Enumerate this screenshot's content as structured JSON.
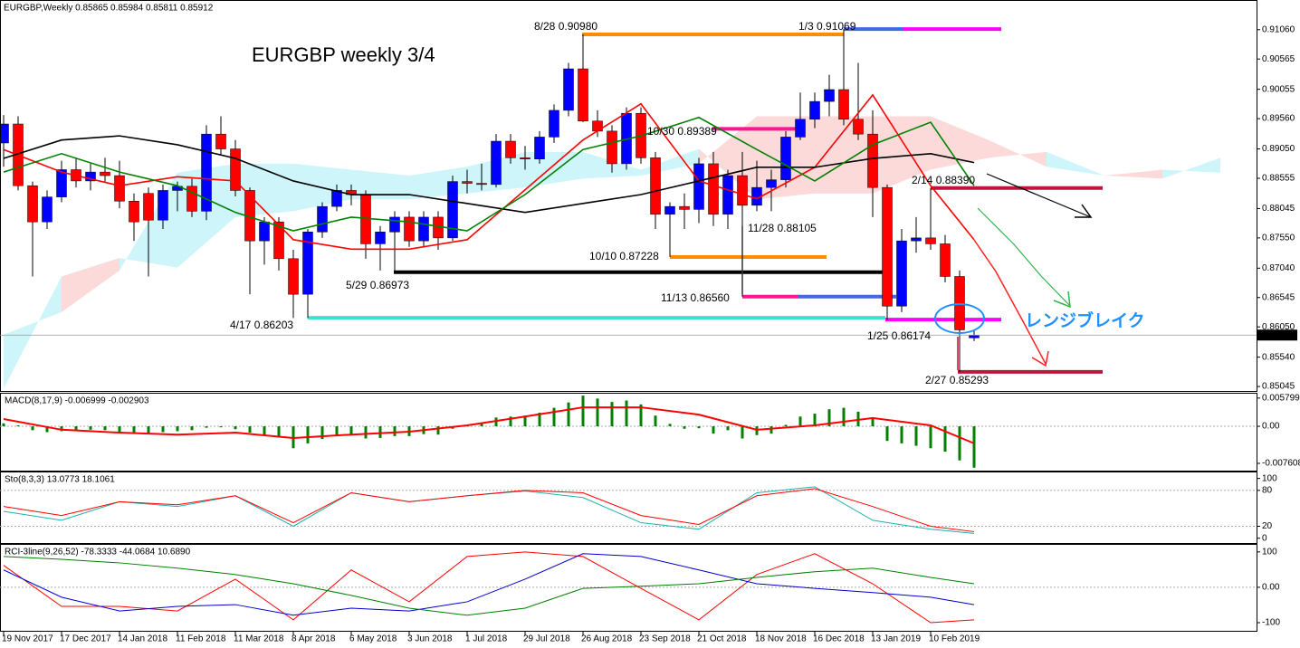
{
  "chart_data": {
    "type": "candlestick",
    "header": "EURGBP,Weekly  0.85865 0.85984 0.85811 0.85912",
    "title": "EURGBP weekly 3/4",
    "annotation": "レンジブレイク",
    "xlim": [
      -0.25,
      86.5
    ],
    "xticks": [
      {
        "value": 0,
        "label": "19 Nov 2017"
      },
      {
        "value": 4,
        "label": "17 Dec 2017"
      },
      {
        "value": 8,
        "label": "14 Jan 2018"
      },
      {
        "value": 12,
        "label": "11 Feb 2018"
      },
      {
        "value": 16,
        "label": "11 Mar 2018"
      },
      {
        "value": 20,
        "label": "8 Apr 2018"
      },
      {
        "value": 24,
        "label": "6 May 2018"
      },
      {
        "value": 28,
        "label": "3 Jun 2018"
      },
      {
        "value": 32,
        "label": "1 Jul 2018"
      },
      {
        "value": 36,
        "label": "29 Jul 2018"
      },
      {
        "value": 40,
        "label": "26 Aug 2018"
      },
      {
        "value": 44,
        "label": "23 Sep 2018"
      },
      {
        "value": 48,
        "label": "21 Oct 2018"
      },
      {
        "value": 52,
        "label": "18 Nov 2018"
      },
      {
        "value": 56,
        "label": "16 Dec 2018"
      },
      {
        "value": 60,
        "label": "13 Jan 2019"
      },
      {
        "value": 64,
        "label": "10 Feb 2019"
      }
    ],
    "ylim": [
      0.8497,
      0.9156
    ],
    "yticks": [
      {
        "value": 0.9106,
        "label": "0.91060"
      },
      {
        "value": 0.90565,
        "label": "0.90565"
      },
      {
        "value": 0.90055,
        "label": "0.90055"
      },
      {
        "value": 0.8956,
        "label": "0.89560"
      },
      {
        "value": 0.8905,
        "label": "0.89050"
      },
      {
        "value": 0.88555,
        "label": "0.88555"
      },
      {
        "value": 0.88045,
        "label": "0.88045"
      },
      {
        "value": 0.8755,
        "label": "0.87550"
      },
      {
        "value": 0.8704,
        "label": "0.87040"
      },
      {
        "value": 0.86545,
        "label": "0.86545"
      },
      {
        "value": 0.8605,
        "label": "0.86050"
      },
      {
        "value": 0.8554,
        "label": "0.85540"
      },
      {
        "value": 0.85045,
        "label": "0.85045"
      }
    ],
    "last_price": {
      "value": 0.85912,
      "label": "0.85912"
    },
    "up_color": "#0000ff",
    "down_color": "#ff0000",
    "candles": [
      [
        0.8915,
        0.8962,
        0.8875,
        0.8947
      ],
      [
        0.8947,
        0.896,
        0.8835,
        0.8843
      ],
      [
        0.8843,
        0.885,
        0.869,
        0.8782
      ],
      [
        0.8782,
        0.8835,
        0.877,
        0.8824
      ],
      [
        0.8824,
        0.8885,
        0.8815,
        0.887
      ],
      [
        0.887,
        0.889,
        0.884,
        0.8851
      ],
      [
        0.8851,
        0.888,
        0.8835,
        0.8866
      ],
      [
        0.8866,
        0.889,
        0.885,
        0.886
      ],
      [
        0.886,
        0.8885,
        0.8805,
        0.8817
      ],
      [
        0.8817,
        0.883,
        0.875,
        0.8782
      ],
      [
        0.883,
        0.884,
        0.869,
        0.8785
      ],
      [
        0.8785,
        0.8845,
        0.877,
        0.8835
      ],
      [
        0.8835,
        0.885,
        0.88,
        0.8842
      ],
      [
        0.8842,
        0.8855,
        0.879,
        0.88
      ],
      [
        0.88,
        0.8945,
        0.8785,
        0.893
      ],
      [
        0.893,
        0.896,
        0.8895,
        0.8905
      ],
      [
        0.8905,
        0.892,
        0.8825,
        0.8835
      ],
      [
        0.8835,
        0.884,
        0.866,
        0.875
      ],
      [
        0.875,
        0.879,
        0.871,
        0.8782
      ],
      [
        0.8782,
        0.879,
        0.87,
        0.872
      ],
      [
        0.872,
        0.8735,
        0.862,
        0.866
      ],
      [
        0.866,
        0.877,
        0.862,
        0.8765
      ],
      [
        0.8765,
        0.8815,
        0.8755,
        0.8808
      ],
      [
        0.8808,
        0.8845,
        0.88,
        0.8835
      ],
      [
        0.8835,
        0.8845,
        0.881,
        0.8828
      ],
      [
        0.8828,
        0.8835,
        0.872,
        0.8745
      ],
      [
        0.8745,
        0.8775,
        0.87,
        0.8765
      ],
      [
        0.8765,
        0.88,
        0.8697,
        0.879
      ],
      [
        0.879,
        0.88,
        0.874,
        0.875
      ],
      [
        0.875,
        0.88,
        0.874,
        0.879
      ],
      [
        0.879,
        0.88,
        0.8735,
        0.8755
      ],
      [
        0.8755,
        0.886,
        0.875,
        0.885
      ],
      [
        0.885,
        0.887,
        0.883,
        0.8847
      ],
      [
        0.8847,
        0.888,
        0.8835,
        0.8845
      ],
      [
        0.8845,
        0.893,
        0.884,
        0.8918
      ],
      [
        0.8918,
        0.893,
        0.888,
        0.889
      ],
      [
        0.889,
        0.891,
        0.887,
        0.8888
      ],
      [
        0.8888,
        0.8935,
        0.888,
        0.8925
      ],
      [
        0.8925,
        0.898,
        0.8915,
        0.897
      ],
      [
        0.897,
        0.905,
        0.896,
        0.904
      ],
      [
        0.904,
        0.9098,
        0.895,
        0.8952
      ],
      [
        0.8952,
        0.897,
        0.8925,
        0.8935
      ],
      [
        0.8935,
        0.8945,
        0.8865,
        0.888
      ],
      [
        0.888,
        0.8975,
        0.887,
        0.8965
      ],
      [
        0.8965,
        0.8975,
        0.888,
        0.889
      ],
      [
        0.889,
        0.89,
        0.877,
        0.8795
      ],
      [
        0.8795,
        0.8815,
        0.8723,
        0.8808
      ],
      [
        0.8808,
        0.883,
        0.877,
        0.8803
      ],
      [
        0.8803,
        0.889,
        0.878,
        0.888
      ],
      [
        0.888,
        0.89,
        0.8775,
        0.8795
      ],
      [
        0.8795,
        0.887,
        0.877,
        0.886
      ],
      [
        0.886,
        0.89,
        0.8656,
        0.881
      ],
      [
        0.881,
        0.8885,
        0.88,
        0.884
      ],
      [
        0.884,
        0.887,
        0.88,
        0.8853
      ],
      [
        0.8853,
        0.8935,
        0.884,
        0.8925
      ],
      [
        0.8925,
        0.9,
        0.892,
        0.8955
      ],
      [
        0.8955,
        0.9,
        0.894,
        0.8985
      ],
      [
        0.8985,
        0.903,
        0.896,
        0.9005
      ],
      [
        0.9005,
        0.9107,
        0.8945,
        0.8955
      ],
      [
        0.8955,
        0.905,
        0.892,
        0.893
      ],
      [
        0.893,
        0.897,
        0.879,
        0.884
      ],
      [
        0.884,
        0.8845,
        0.8617,
        0.864
      ],
      [
        0.864,
        0.877,
        0.863,
        0.875
      ],
      [
        0.875,
        0.879,
        0.873,
        0.8755
      ],
      [
        0.8755,
        0.8839,
        0.8735,
        0.8745
      ],
      [
        0.8745,
        0.876,
        0.868,
        0.869
      ],
      [
        0.869,
        0.87,
        0.8529,
        0.86
      ],
      [
        0.85865,
        0.85984,
        0.85811,
        0.85912
      ]
    ],
    "lines": {
      "x": [
        0,
        4,
        8,
        12,
        16,
        20,
        24,
        28,
        32,
        36,
        40,
        44,
        48,
        52,
        56,
        60,
        64,
        67
      ],
      "series": [
        {
          "color": "#ff0000",
          "values": [
            0.8904,
            0.8866,
            0.8843,
            0.8858,
            0.8851,
            0.8752,
            0.8736,
            0.8736,
            0.8752,
            0.8836,
            0.892,
            0.8981,
            0.8851,
            0.8821,
            0.8874,
            0.8996,
            0.8843,
            0.8752
          ]
        },
        {
          "color": "#000000",
          "values": [
            0.8889,
            0.892,
            0.8927,
            0.8912,
            0.8889,
            0.8851,
            0.8828,
            0.8828,
            0.8813,
            0.8798,
            0.8813,
            0.8828,
            0.8851,
            0.8874,
            0.8874,
            0.8889,
            0.8897,
            0.8882
          ]
        },
        {
          "color": "#008000",
          "values": [
            0.8866,
            0.8897,
            0.8866,
            0.8843,
            0.8798,
            0.8767,
            0.879,
            0.8782,
            0.8767,
            0.8828,
            0.8904,
            0.8927,
            0.8958,
            0.8904,
            0.8851,
            0.8912,
            0.895,
            0.8843
          ]
        }
      ]
    },
    "cloud": {
      "x": [
        0,
        4,
        8,
        12,
        16,
        20,
        24,
        28,
        32,
        36,
        40,
        44,
        48,
        52,
        56,
        60,
        64,
        68,
        72,
        76,
        80,
        84
      ],
      "span_a": [
        0.8592,
        0.863,
        0.87,
        0.8865,
        0.888,
        0.888,
        0.887,
        0.886,
        0.8875,
        0.89,
        0.89,
        0.887,
        0.8905,
        0.882,
        0.883,
        0.883,
        0.887,
        0.889,
        0.89,
        0.886,
        0.8855,
        0.889
      ],
      "span_b": [
        0.8501,
        0.869,
        0.8721,
        0.8705,
        0.879,
        0.88,
        0.882,
        0.882,
        0.883,
        0.884,
        0.8855,
        0.886,
        0.888,
        0.896,
        0.896,
        0.896,
        0.896,
        0.892,
        0.8875,
        0.886,
        0.887,
        0.8865
      ],
      "up_color": "#cdf5fa",
      "down_color": "#fcdada"
    },
    "levels": [
      {
        "label": "8/28 0.90980",
        "value": 0.9098,
        "colors": [
          "#ff8c00"
        ]
      },
      {
        "label": "1/3 0.91069",
        "value": 0.91069,
        "colors": [
          "#4169e1",
          "#ff00ff"
        ]
      },
      {
        "label": "10/30 0.89389",
        "value": 0.89389,
        "colors": [
          "#ff1493"
        ]
      },
      {
        "label": "2/14 0.88390",
        "value": 0.8839,
        "colors": [
          "#c0143c"
        ]
      },
      {
        "label": "11/28 0.88105",
        "value": 0.88105
      },
      {
        "label": "10/10 0.87228",
        "value": 0.87228,
        "colors": [
          "#ff8c00"
        ]
      },
      {
        "label": "5/29 0.86973",
        "value": 0.86973,
        "colors": [
          "#000000"
        ]
      },
      {
        "label": "11/13 0.86560",
        "value": 0.8656,
        "colors": [
          "#ff1493",
          "#4169e1"
        ]
      },
      {
        "label": "4/17 0.86203",
        "value": 0.86203,
        "colors": [
          "#40e0d0"
        ]
      },
      {
        "label": "1/25 0.86174",
        "value": 0.86174,
        "colors": [
          "#ff00ff"
        ]
      },
      {
        "label": "2/27 0.85293",
        "value": 0.85293,
        "colors": [
          "#c0143c"
        ]
      }
    ],
    "panels": [
      {
        "type": "macd",
        "label": "MACD(8,17,9) -0.006999 -0.002903",
        "ylim": [
          -0.0091,
          0.0067
        ],
        "yticks": [
          0.005799,
          {
            "value": 0,
            "label": "0.00"
          },
          -0.007608
        ],
        "histogram": {
          "color": "#008000",
          "values": [
            0.0006,
            0.0002,
            -0.0008,
            -0.0012,
            -0.001,
            -0.0008,
            -0.0007,
            -0.0008,
            -0.0011,
            -0.0014,
            -0.0015,
            -0.0012,
            -0.001,
            -0.0008,
            -0.0003,
            -0.0002,
            -0.0006,
            -0.0013,
            -0.0018,
            -0.0022,
            -0.0045,
            -0.0035,
            -0.0026,
            -0.0019,
            -0.0018,
            -0.0025,
            -0.0024,
            -0.002,
            -0.002,
            -0.0016,
            -0.0017,
            -0.0005,
            0.0003,
            0.0006,
            0.0018,
            0.002,
            0.0022,
            0.0028,
            0.0038,
            0.0049,
            0.0063,
            0.0057,
            0.005,
            0.0053,
            0.0045,
            0.0022,
            0.0005,
            -0.0005,
            -0.0004,
            -0.0015,
            -0.0008,
            -0.0025,
            -0.0018,
            -0.0015,
            0.0003,
            0.002,
            0.0026,
            0.0035,
            0.0038,
            0.003,
            0.0018,
            -0.003,
            -0.0035,
            -0.004,
            -0.0045,
            -0.0052,
            -0.007,
            -0.0085
          ]
        },
        "x": [
          0,
          4,
          8,
          12,
          16,
          20,
          24,
          28,
          32,
          36,
          40,
          44,
          48,
          52,
          56,
          60,
          64,
          67
        ],
        "series": [
          {
            "color": "#ff0000",
            "values": [
              0.0015,
              -0.0007,
              -0.0013,
              -0.0017,
              -0.0013,
              -0.0024,
              -0.0017,
              -0.0011,
              0.0002,
              0.002,
              0.0039,
              0.0039,
              0.0024,
              -0.0007,
              0.0002,
              0.0017,
              0.0002,
              -0.0035
            ]
          }
        ]
      },
      {
        "type": "stochastic",
        "label": "Sto(8,3,3) 13.0773 18.1061",
        "ylim": [
          -8,
          110
        ],
        "yticks": [
          100,
          80,
          20,
          0
        ],
        "levels": [
          80,
          20
        ],
        "x": [
          0,
          4,
          8,
          12,
          16,
          20,
          24,
          28,
          32,
          36,
          40,
          44,
          48,
          52,
          56,
          60,
          64,
          67
        ],
        "series": [
          {
            "color": "#20b2aa",
            "values": [
              45,
              30,
              61,
              53,
              71,
              20,
              76,
              61,
              71,
              79,
              68,
              26,
              15,
              76,
              86,
              30,
              15,
              8
            ]
          },
          {
            "color": "#ff0000",
            "values": [
              53,
              38,
              61,
              56,
              71,
              26,
              76,
              61,
              71,
              80,
              76,
              38,
              23,
              71,
              83,
              53,
              20,
              11
            ]
          }
        ]
      },
      {
        "type": "rci",
        "label": "RCI-3line(9,26,52) -78.3333 -44.0684 10.6890",
        "ylim": [
          -123,
          120
        ],
        "yticks": [
          100,
          {
            "value": 0,
            "label": "0.00"
          },
          -100
        ],
        "x": [
          0,
          4,
          8,
          12,
          16,
          20,
          24,
          28,
          32,
          36,
          40,
          44,
          48,
          52,
          56,
          60,
          64,
          67
        ],
        "series": [
          {
            "color": "#ff0000",
            "values": [
              62,
              -54,
              -54,
              -67,
              23,
              -92,
              49,
              -41,
              87,
              100,
              87,
              -3,
              -92,
              36,
              95,
              10,
              -100,
              -92
            ]
          },
          {
            "color": "#0000cd",
            "values": [
              49,
              -28,
              -67,
              -54,
              -49,
              -79,
              -59,
              -67,
              -41,
              23,
              95,
              87,
              49,
              10,
              -3,
              -15,
              -28,
              -49
            ]
          },
          {
            "color": "#008000",
            "values": [
              87,
              79,
              69,
              54,
              36,
              10,
              -23,
              -59,
              -79,
              -59,
              -3,
              3,
              10,
              28,
              44,
              54,
              28,
              10
            ]
          }
        ]
      }
    ]
  }
}
